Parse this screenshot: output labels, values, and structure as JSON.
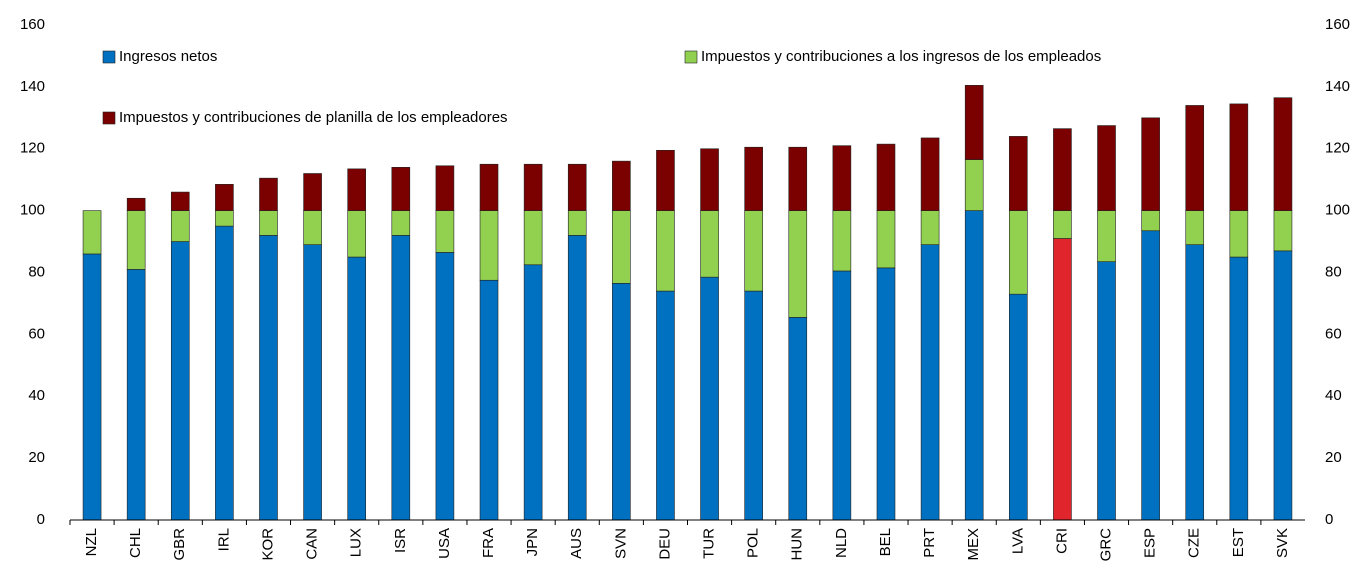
{
  "chart_data": {
    "type": "stacked_bar",
    "categories": [
      "NZL",
      "CHL",
      "GBR",
      "IRL",
      "KOR",
      "CAN",
      "LUX",
      "ISR",
      "USA",
      "FRA",
      "JPN",
      "AUS",
      "SVN",
      "DEU",
      "TUR",
      "POL",
      "HUN",
      "NLD",
      "BEL",
      "PRT",
      "MEX",
      "LVA",
      "CRI",
      "GRC",
      "ESP",
      "CZE",
      "EST",
      "SVK"
    ],
    "series": [
      {
        "name": "Ingresos netos",
        "color": "#0070c0",
        "point_colors": {
          "22": "#e0262c"
        },
        "values": [
          86,
          81,
          90,
          95,
          92,
          89,
          85,
          92,
          86.5,
          77.5,
          82.5,
          92,
          76.5,
          74,
          78.5,
          74,
          65.5,
          80.5,
          81.5,
          89,
          100,
          73,
          91,
          83.5,
          93.5,
          89,
          85,
          87
        ]
      },
      {
        "name": "Impuestos y contribuciones a los ingresos de los empleados",
        "color": "#92d050",
        "values": [
          14,
          19,
          10,
          5,
          8,
          11,
          15,
          8,
          13.5,
          22.5,
          17.5,
          8,
          23.5,
          26,
          21.5,
          26,
          34.5,
          19.5,
          18.5,
          11,
          16.5,
          27,
          9,
          16.5,
          6.5,
          11,
          15,
          13
        ]
      },
      {
        "name": "Impuestos y contribuciones de planilla de los empleadores",
        "color": "#7b0000",
        "values": [
          0,
          4,
          6,
          8.5,
          10.5,
          12,
          13.5,
          14,
          14.5,
          15,
          15,
          15,
          16,
          19.5,
          20,
          20.5,
          20.5,
          21,
          21.5,
          23.5,
          24,
          24,
          26.5,
          27.5,
          30,
          34,
          34.5,
          36.5
        ]
      }
    ],
    "ylim": [
      0,
      160
    ],
    "yticks": [
      0,
      20,
      40,
      60,
      80,
      100,
      120,
      140,
      160
    ],
    "y2lim": [
      0,
      160
    ],
    "y2ticks": [
      0,
      20,
      40,
      60,
      80,
      100,
      120,
      140,
      160
    ]
  }
}
